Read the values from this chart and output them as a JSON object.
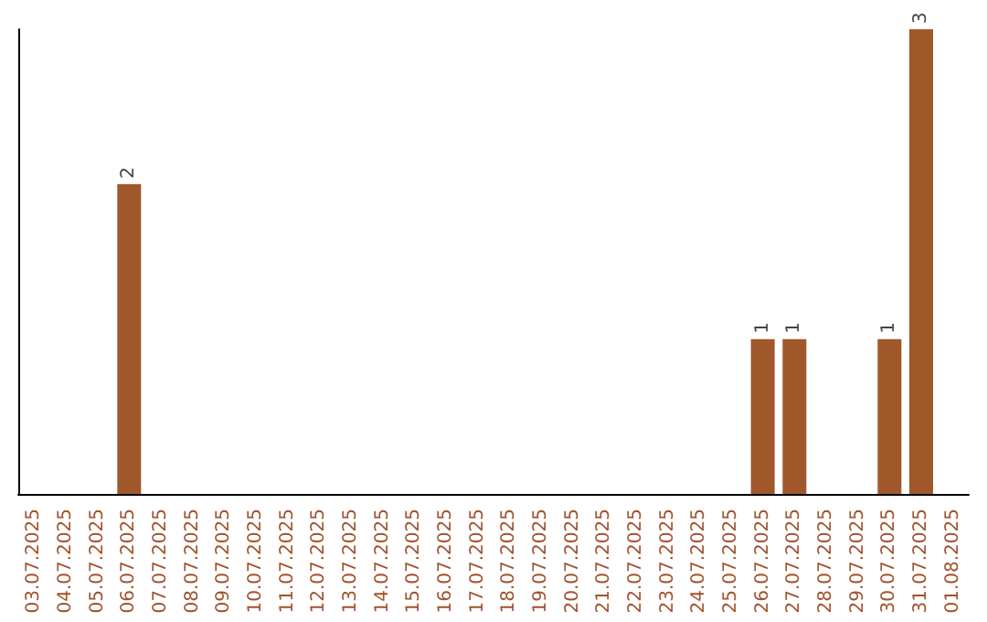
{
  "chart_data": {
    "type": "bar",
    "categories": [
      "03.07.2025",
      "04.07.2025",
      "05.07.2025",
      "06.07.2025",
      "07.07.2025",
      "08.07.2025",
      "09.07.2025",
      "10.07.2025",
      "11.07.2025",
      "12.07.2025",
      "13.07.2025",
      "14.07.2025",
      "15.07.2025",
      "16.07.2025",
      "17.07.2025",
      "18.07.2025",
      "19.07.2025",
      "20.07.2025",
      "21.07.2025",
      "22.07.2025",
      "23.07.2025",
      "24.07.2025",
      "25.07.2025",
      "26.07.2025",
      "27.07.2025",
      "28.07.2025",
      "29.07.2025",
      "30.07.2025",
      "31.07.2025",
      "01.08.2025"
    ],
    "values": [
      null,
      null,
      null,
      2,
      null,
      null,
      null,
      null,
      null,
      null,
      null,
      null,
      null,
      null,
      null,
      null,
      null,
      null,
      null,
      null,
      null,
      null,
      null,
      1,
      1,
      null,
      null,
      1,
      3,
      null
    ],
    "color": "#a0582a",
    "ylim": [
      0,
      3
    ],
    "data_labels": true,
    "tick_labels": "x"
  }
}
